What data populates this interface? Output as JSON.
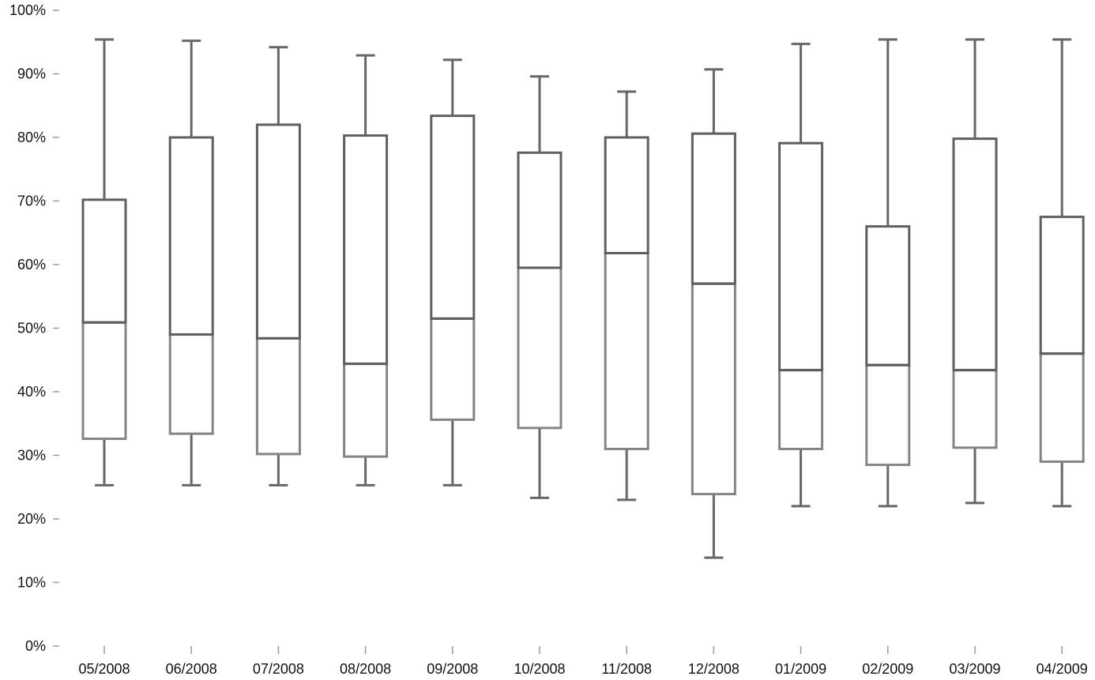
{
  "chart_data": {
    "type": "box",
    "title": "",
    "xlabel": "",
    "ylabel": "",
    "ylim": [
      0,
      100
    ],
    "y_ticks": [
      0,
      10,
      20,
      30,
      40,
      50,
      60,
      70,
      80,
      90,
      100
    ],
    "y_tick_labels": [
      "0%",
      "10%",
      "20%",
      "30%",
      "40%",
      "50%",
      "60%",
      "70%",
      "80%",
      "90%",
      "100%"
    ],
    "categories": [
      "05/2008",
      "06/2008",
      "07/2008",
      "08/2008",
      "09/2008",
      "10/2008",
      "11/2008",
      "12/2008",
      "01/2009",
      "02/2009",
      "03/2009",
      "04/2009"
    ],
    "boxes": [
      {
        "min": 25.3,
        "q1": 32.6,
        "median": 50.9,
        "q3": 70.2,
        "max": 95.4
      },
      {
        "min": 25.3,
        "q1": 33.4,
        "median": 49.0,
        "q3": 80.0,
        "max": 95.2
      },
      {
        "min": 25.3,
        "q1": 30.2,
        "median": 48.4,
        "q3": 82.0,
        "max": 94.2
      },
      {
        "min": 25.3,
        "q1": 29.8,
        "median": 44.4,
        "q3": 80.3,
        "max": 92.9
      },
      {
        "min": 25.3,
        "q1": 35.6,
        "median": 51.5,
        "q3": 83.4,
        "max": 92.2
      },
      {
        "min": 23.3,
        "q1": 34.3,
        "median": 59.5,
        "q3": 77.6,
        "max": 89.6
      },
      {
        "min": 23.0,
        "q1": 31.0,
        "median": 61.8,
        "q3": 80.0,
        "max": 87.2
      },
      {
        "min": 13.9,
        "q1": 23.9,
        "median": 57.0,
        "q3": 80.6,
        "max": 90.7
      },
      {
        "min": 22.0,
        "q1": 31.0,
        "median": 43.4,
        "q3": 79.1,
        "max": 94.7
      },
      {
        "min": 22.0,
        "q1": 28.5,
        "median": 44.2,
        "q3": 66.0,
        "max": 95.4
      },
      {
        "min": 22.5,
        "q1": 31.2,
        "median": 43.4,
        "q3": 79.8,
        "max": 95.4
      },
      {
        "min": 22.0,
        "q1": 29.0,
        "median": 46.0,
        "q3": 67.5,
        "max": 95.4
      }
    ],
    "grid": false,
    "legend": "none",
    "colors": {
      "upper_box": "#5f5f5f",
      "lower_box": "#848484",
      "whisker": "#666666",
      "axis_tick": "#9a9a9a",
      "text": "#111111"
    }
  }
}
